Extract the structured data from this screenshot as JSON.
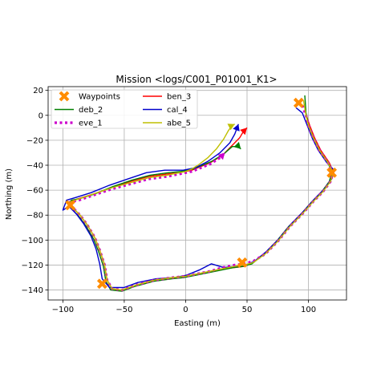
{
  "chart_data": {
    "type": "line",
    "title": "Mission <logs/C001_P01001_K1>",
    "xlabel": "Easting (m)",
    "ylabel": "Northing (m)",
    "xlim": [
      -112,
      131
    ],
    "ylim": [
      -148,
      23
    ],
    "xticks": [
      -100,
      -50,
      0,
      50,
      100
    ],
    "yticks": [
      20,
      0,
      -20,
      -40,
      -60,
      -80,
      -100,
      -120,
      -140
    ],
    "grid": true,
    "legend_position": "top-left",
    "legend_entries": [
      "Waypoints",
      "ben_3",
      "deb_2",
      "cal_4",
      "eve_1",
      "abe_5"
    ],
    "waypoints": {
      "name": "Waypoints",
      "color": "#ff8c00",
      "marker": "x",
      "x": [
        92,
        119,
        46,
        -68,
        -94
      ],
      "y": [
        10,
        -46,
        -118,
        -135,
        -72
      ]
    },
    "series": [
      {
        "name": "ben_3",
        "color": "#ff0000",
        "style": "solid",
        "x": [
          97,
          99,
          101,
          105,
          110,
          117,
          120,
          118,
          112,
          104,
          95,
          85,
          75,
          65,
          55,
          48,
          40,
          30,
          20,
          10,
          0,
          -10,
          -25,
          -40,
          -52,
          -60,
          -64,
          -66,
          -70,
          -74,
          -80,
          -86,
          -92,
          -95,
          -94,
          -88,
          -75,
          -60,
          -45,
          -30,
          -15,
          -5,
          0,
          5,
          10,
          20,
          30,
          38,
          44,
          47,
          50
        ],
        "y": [
          5,
          -2,
          -8,
          -18,
          -28,
          -38,
          -45,
          -52,
          -60,
          -68,
          -78,
          -88,
          -100,
          -110,
          -118,
          -121,
          -122,
          -123,
          -125,
          -127,
          -129,
          -130,
          -132,
          -136,
          -140,
          -139,
          -132,
          -120,
          -108,
          -98,
          -88,
          -80,
          -74,
          -70,
          -69,
          -67,
          -63,
          -58,
          -53,
          -49,
          -47,
          -46,
          -45,
          -44,
          -42,
          -38,
          -32,
          -24,
          -18,
          -13,
          -10
        ]
      },
      {
        "name": "deb_2",
        "color": "#008000",
        "style": "solid",
        "x": [
          97,
          98,
          100,
          104,
          109,
          116,
          119,
          117,
          111,
          103,
          94,
          84,
          74,
          64,
          54,
          47,
          39,
          29,
          19,
          9,
          -1,
          -11,
          -26,
          -41,
          -52,
          -61,
          -65,
          -67,
          -71,
          -75,
          -81,
          -87,
          -93,
          -95,
          -93,
          -87,
          -74,
          -59,
          -44,
          -29,
          -14,
          -4,
          1,
          6,
          11,
          21,
          31,
          38,
          43,
          45
        ],
        "y": [
          16,
          2,
          -8,
          -18,
          -28,
          -38,
          -46,
          -53,
          -61,
          -69,
          -79,
          -89,
          -101,
          -111,
          -119,
          -121,
          -122,
          -124,
          -126,
          -128,
          -130,
          -131,
          -133,
          -137,
          -141,
          -140,
          -133,
          -121,
          -109,
          -99,
          -89,
          -81,
          -75,
          -70,
          -68,
          -67,
          -63,
          -57,
          -52,
          -48,
          -46,
          -45,
          -44,
          -43,
          -41,
          -37,
          -31,
          -25,
          -25,
          -27
        ]
      },
      {
        "name": "cal_4",
        "color": "#0000cc",
        "style": "solid",
        "x": [
          90,
          95,
          99,
          103,
          108,
          115,
          121,
          119,
          113,
          105,
          96,
          86,
          76,
          66,
          56,
          49,
          41,
          31,
          21,
          11,
          1,
          -9,
          -24,
          -39,
          -50,
          -62,
          -68,
          -70,
          -73,
          -77,
          -83,
          -89,
          -95,
          -100,
          -97,
          -90,
          -77,
          -62,
          -47,
          -32,
          -17,
          -7,
          -2,
          3,
          8,
          18,
          28,
          36,
          40,
          43
        ],
        "y": [
          6,
          2,
          -8,
          -18,
          -28,
          -38,
          -44,
          -51,
          -59,
          -67,
          -77,
          -87,
          -99,
          -109,
          -117,
          -120,
          -121,
          -122,
          -119,
          -124,
          -128,
          -130,
          -131,
          -134,
          -138,
          -138,
          -131,
          -119,
          -107,
          -97,
          -87,
          -79,
          -73,
          -76,
          -68,
          -66,
          -62,
          -56,
          -51,
          -46,
          -44,
          -44,
          -44,
          -43,
          -42,
          -37,
          -30,
          -22,
          -15,
          -7
        ]
      },
      {
        "name": "eve_1",
        "color": "#cc00cc",
        "style": "dotted",
        "x": [
          95,
          98,
          100,
          104,
          109,
          116,
          120,
          118,
          112,
          104,
          95,
          85,
          75,
          65,
          55,
          48,
          40,
          30,
          20,
          10,
          0,
          -10,
          -25,
          -40,
          -52,
          -60,
          -64,
          -66,
          -70,
          -74,
          -80,
          -86,
          -92,
          -95,
          -93,
          -87,
          -75,
          -60,
          -45,
          -30,
          -15,
          -5,
          0,
          5,
          10,
          20,
          28,
          32
        ],
        "y": [
          8,
          0,
          -8,
          -18,
          -28,
          -38,
          -46,
          -53,
          -61,
          -69,
          -79,
          -89,
          -101,
          -111,
          -117,
          -119,
          -120,
          -122,
          -125,
          -127,
          -129,
          -130,
          -132,
          -136,
          -140,
          -139,
          -132,
          -120,
          -108,
          -98,
          -88,
          -80,
          -74,
          -70,
          -69,
          -68,
          -64,
          -59,
          -55,
          -51,
          -49,
          -47,
          -46,
          -45,
          -43,
          -39,
          -34,
          -30
        ]
      },
      {
        "name": "abe_5",
        "color": "#bfbf00",
        "style": "solid",
        "x": [
          96,
          98,
          100,
          104,
          109,
          116,
          120,
          118,
          112,
          104,
          95,
          85,
          75,
          65,
          55,
          48,
          40,
          30,
          20,
          10,
          0,
          -10,
          -25,
          -40,
          -52,
          -60,
          -64,
          -66,
          -70,
          -74,
          -80,
          -86,
          -92,
          -96,
          -93,
          -87,
          -75,
          -60,
          -45,
          -30,
          -15,
          -5,
          0,
          5,
          10,
          18,
          25,
          31,
          35,
          38,
          40
        ],
        "y": [
          12,
          0,
          -8,
          -18,
          -28,
          -38,
          -46,
          -53,
          -61,
          -69,
          -79,
          -89,
          -101,
          -111,
          -118,
          -120,
          -121,
          -123,
          -125,
          -127,
          -129,
          -130,
          -132,
          -136,
          -140,
          -139,
          -132,
          -120,
          -108,
          -98,
          -88,
          -80,
          -74,
          -70,
          -69,
          -67,
          -63,
          -58,
          -54,
          -50,
          -48,
          -46,
          -45,
          -43,
          -40,
          -34,
          -27,
          -19,
          -12,
          -8,
          -7
        ]
      }
    ]
  }
}
